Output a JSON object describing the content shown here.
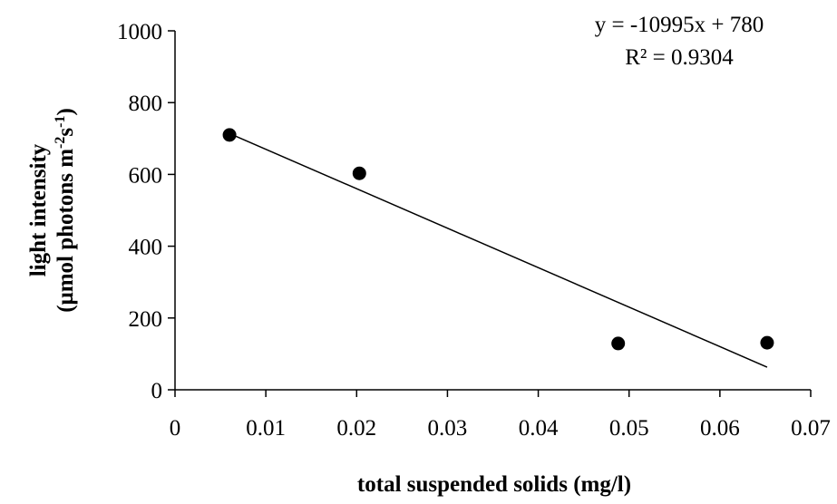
{
  "chart_data": {
    "type": "scatter",
    "xlabel": "total suspended solids (mg/l)",
    "ylabel_line1": "light intensity",
    "ylabel_line2": "(μmol photons m-2s-1)",
    "xlim": [
      0,
      0.07
    ],
    "ylim": [
      0,
      1000
    ],
    "xticks": [
      "0",
      "0.01",
      "0.02",
      "0.03",
      "0.04",
      "0.05",
      "0.06",
      "0.07"
    ],
    "yticks": [
      "0",
      "200",
      "400",
      "600",
      "800",
      "1000"
    ],
    "points": [
      {
        "x": 0.006,
        "y": 710
      },
      {
        "x": 0.0203,
        "y": 603
      },
      {
        "x": 0.0488,
        "y": 129
      },
      {
        "x": 0.0652,
        "y": 131
      }
    ],
    "trendline": {
      "type": "linear",
      "slope": -10995,
      "intercept": 780,
      "x_range": [
        0.006,
        0.0652
      ],
      "equation": "y = -10995x + 780",
      "r_squared": "R² = 0.9304"
    },
    "grid": false,
    "legend": "none",
    "marker_color": "#000000",
    "line_color": "#000000"
  }
}
